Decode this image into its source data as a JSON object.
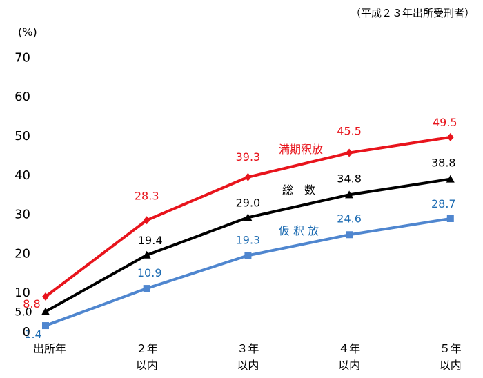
{
  "chart_data": {
    "type": "line",
    "note": "（平成２３年出所受刑者）",
    "ylabel": "(%)",
    "ylim": [
      0,
      70
    ],
    "yticks": [
      0,
      10,
      20,
      30,
      40,
      50,
      60,
      70
    ],
    "extra_ytick": "5.0",
    "categories": [
      {
        "line1": "出所年",
        "line2": ""
      },
      {
        "line1": "２年",
        "line2": "以内"
      },
      {
        "line1": "３年",
        "line2": "以内"
      },
      {
        "line1": "４年",
        "line2": "以内"
      },
      {
        "line1": "５年",
        "line2": "以内"
      }
    ],
    "series": [
      {
        "name": "満期釈放",
        "color": "#e8141c",
        "marker": "diamond",
        "values": [
          8.8,
          28.3,
          39.3,
          45.5,
          49.5
        ],
        "labels": [
          "8.8",
          "28.3",
          "39.3",
          "45.5",
          "49.5"
        ]
      },
      {
        "name": "総　数",
        "color": "#000000",
        "marker": "triangle",
        "values": [
          5.0,
          19.4,
          29.0,
          34.8,
          38.8
        ],
        "labels": [
          "",
          "19.4",
          "29.0",
          "34.8",
          "38.8"
        ]
      },
      {
        "name": "仮 釈 放",
        "color": "#4f86cf",
        "label_color": "#1f6db3",
        "marker": "square",
        "values": [
          1.4,
          10.9,
          19.3,
          24.6,
          28.7
        ],
        "labels": [
          "1.4",
          "10.9",
          "19.3",
          "24.6",
          "28.7"
        ]
      }
    ]
  }
}
